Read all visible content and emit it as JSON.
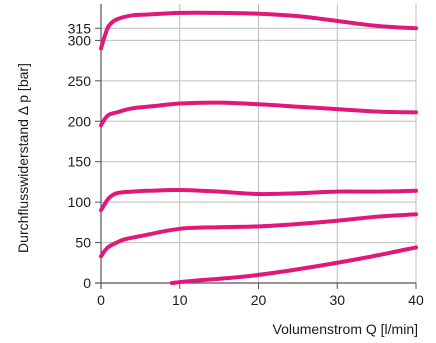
{
  "chart_data": {
    "type": "line",
    "xlabel": "Volumenstrom Q [l/min]",
    "ylabel": "Durchflusswiderstand Δ p [bar]",
    "xlim": [
      0,
      40
    ],
    "ylim": [
      0,
      345
    ],
    "x_ticks": [
      0,
      10,
      20,
      30,
      40
    ],
    "y_ticks": [
      0,
      50,
      100,
      150,
      200,
      250,
      300,
      315
    ],
    "grid": true,
    "line_color": "#e0187a",
    "grid_color": "#bdbdbd",
    "axis_color": "#555555",
    "series": [
      {
        "x": [
          0,
          0.5,
          1,
          2,
          4,
          6,
          10,
          15,
          20,
          25,
          30,
          35,
          40
        ],
        "y": [
          290,
          306,
          318,
          326,
          331,
          332,
          334,
          334,
          333,
          330,
          324,
          318,
          315
        ]
      },
      {
        "x": [
          0,
          0.5,
          1,
          2,
          4,
          7,
          10,
          15,
          20,
          25,
          30,
          35,
          40
        ],
        "y": [
          195,
          203,
          208,
          211,
          216,
          219,
          222,
          223,
          221,
          218,
          215,
          212,
          211
        ]
      },
      {
        "x": [
          0,
          0.5,
          1,
          2,
          4,
          6,
          10,
          15,
          20,
          25,
          30,
          35,
          40
        ],
        "y": [
          90,
          98,
          105,
          111,
          113,
          114,
          115,
          113,
          110,
          111,
          113,
          113,
          114
        ]
      },
      {
        "x": [
          0,
          0.5,
          1,
          2,
          3,
          5,
          10,
          15,
          20,
          25,
          30,
          35,
          40
        ],
        "y": [
          33,
          40,
          45,
          50,
          54,
          58,
          67,
          69,
          70,
          73,
          77,
          82,
          85
        ]
      },
      {
        "x": [
          9,
          12,
          16,
          20,
          25,
          30,
          35,
          40
        ],
        "y": [
          0,
          3,
          6,
          10,
          17,
          25,
          34,
          44
        ]
      }
    ]
  }
}
